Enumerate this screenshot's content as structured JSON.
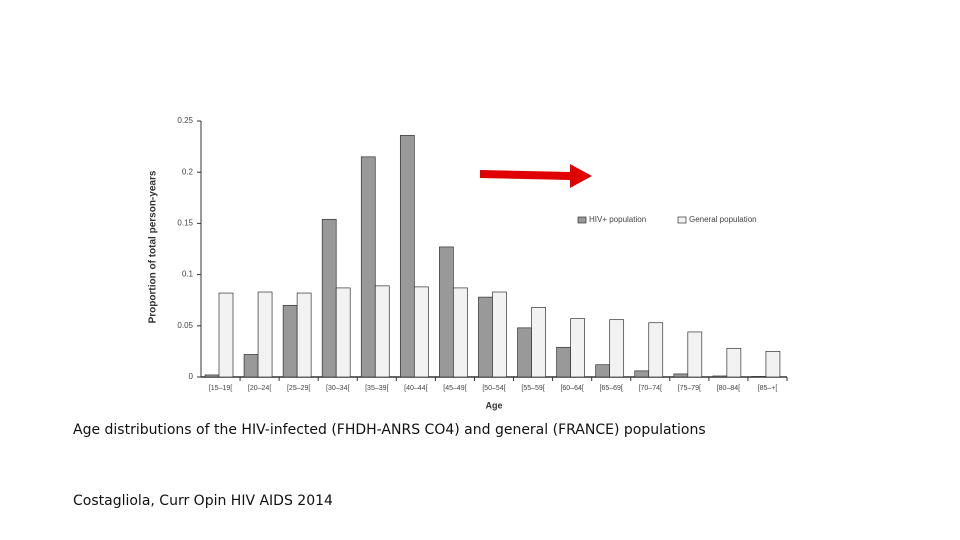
{
  "chart_data": {
    "type": "bar",
    "x_label": "Age",
    "y_label": "Proportion of total person-years",
    "categories": [
      "[15–19[",
      "[20–24[",
      "[25–29[",
      "[30–34[",
      "[35–39[",
      "[40–44[",
      "[45–49[",
      "[50–54[",
      "[55–59[",
      "[60–64[",
      "[65–69[",
      "[70–74[",
      "[75–79[",
      "[80–84[",
      "[85–+["
    ],
    "series": [
      {
        "name": "HIV+ population",
        "color": "#999999",
        "values": [
          0.002,
          0.022,
          0.07,
          0.154,
          0.215,
          0.236,
          0.127,
          0.078,
          0.048,
          0.029,
          0.012,
          0.006,
          0.003,
          0.001,
          0.0005
        ]
      },
      {
        "name": "General population",
        "color": "#f2f2f2",
        "values": [
          0.082,
          0.083,
          0.082,
          0.087,
          0.089,
          0.088,
          0.087,
          0.083,
          0.068,
          0.057,
          0.056,
          0.053,
          0.044,
          0.028,
          0.025
        ]
      }
    ],
    "ylim": [
      0,
      0.25
    ],
    "yticks": [
      0,
      0.05,
      0.1,
      0.15,
      0.2,
      0.25
    ],
    "legend": "upper right"
  },
  "caption": "Age distributions of the HIV-infected (FHDH-ANRS CO4) and general (FRANCE) populations",
  "source": "Costagliola, Curr Opin HIV AIDS 2014"
}
